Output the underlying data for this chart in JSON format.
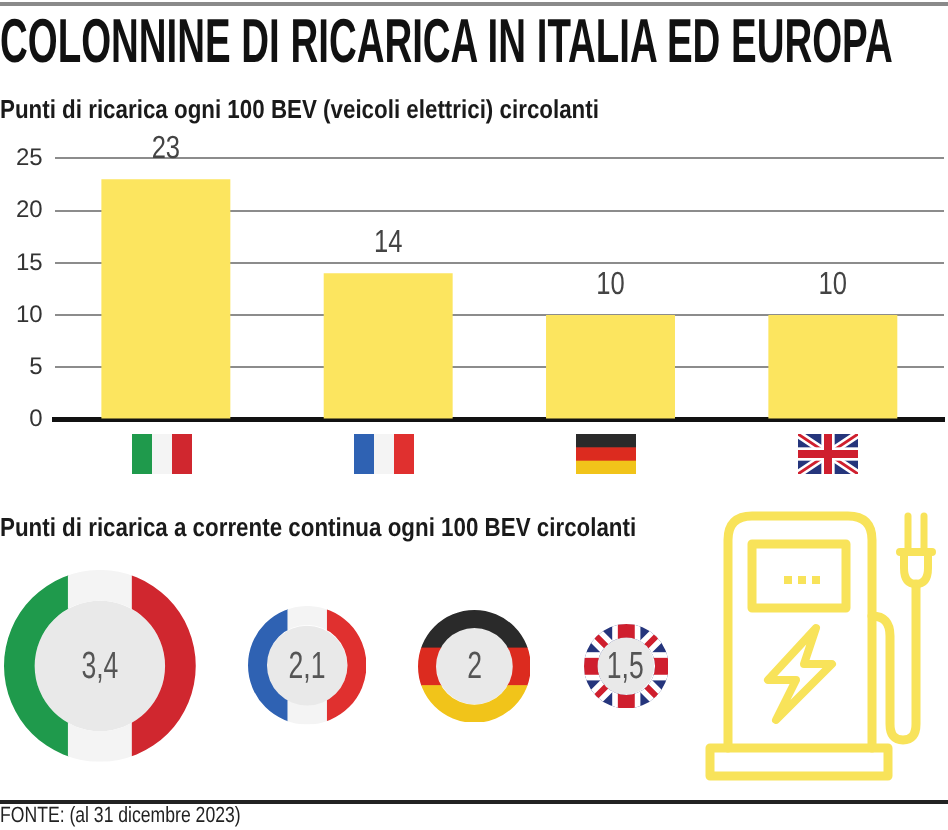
{
  "chart_data": [
    {
      "type": "bar",
      "title": "COLONNINE DI RICARICA IN ITALIA ED EUROPA",
      "subtitle": "Punti di ricarica ogni 100 BEV (veicoli elettrici) circolanti",
      "categories": [
        null,
        null,
        null,
        null
      ],
      "values": [
        23,
        14,
        10,
        10
      ],
      "color": "#fce55f",
      "ylim": [
        0,
        25
      ],
      "yticks": [
        0,
        5,
        10,
        15,
        20,
        25
      ],
      "grid": "y",
      "data_labels": true
    },
    {
      "type": "other",
      "title": "Punti di ricarica a corrente continua ogni 100 BEV circolanti",
      "categories": [
        null,
        null,
        null,
        null
      ],
      "values": [
        3.4,
        2.1,
        2,
        1.5
      ],
      "value_labels": [
        "3,4",
        "2,1",
        "2",
        "1,5"
      ],
      "color": "#e9e9e9",
      "annotations": [
        "FONTE: (al 31 dicembre 2023)"
      ]
    }
  ]
}
